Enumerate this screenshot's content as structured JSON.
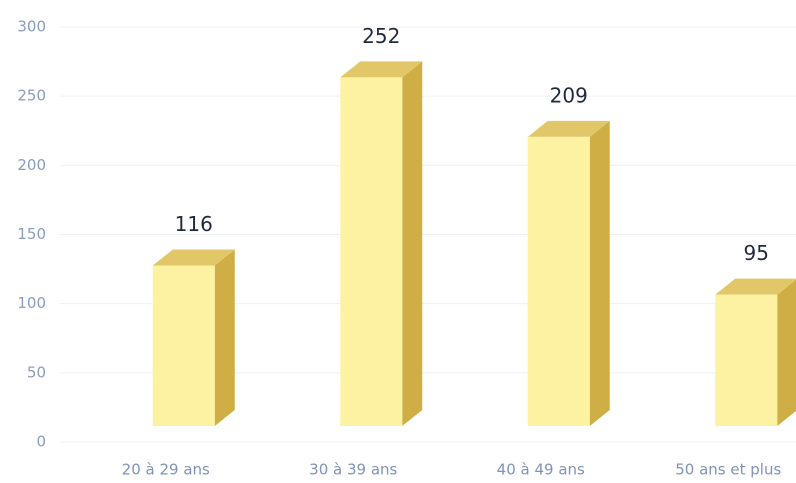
{
  "chart_data": {
    "type": "bar3d",
    "categories": [
      "20 à 29 ans",
      "30 à 39 ans",
      "40 à 49 ans",
      "50 ans et plus"
    ],
    "values": [
      116,
      252,
      209,
      95
    ],
    "color": "#fdf2a2",
    "ylim": [
      0,
      300
    ],
    "yticks": [
      0,
      50,
      100,
      150,
      200,
      250,
      300
    ],
    "grid": true
  }
}
